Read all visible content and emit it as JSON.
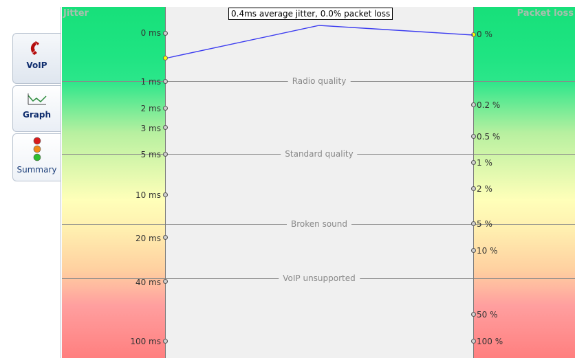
{
  "tabs": [
    {
      "label": "VoIP",
      "icon": "phone-icon",
      "active": true
    },
    {
      "label": "Graph",
      "icon": "graph-icon",
      "active": false
    },
    {
      "label": "Summary",
      "icon": "traffic-light-icon",
      "active": false
    }
  ],
  "graph": {
    "jitter_title": "Jitter",
    "loss_title": "Packet loss",
    "result_text": "0.4ms average jitter, 0.0% packet loss",
    "jitter_ticks": [
      "0 ms",
      "1 ms",
      "2 ms",
      "3 ms",
      "5 ms",
      "10 ms",
      "20 ms",
      "40 ms",
      "100 ms"
    ],
    "loss_ticks": [
      "0 %",
      "0.2 %",
      "0.5 %",
      "1 %",
      "2 %",
      "5 %",
      "10 %",
      "50 %",
      "100 %"
    ],
    "quality_lines": [
      "Radio quality",
      "Standard quality",
      "Broken sound",
      "VoIP unsupported"
    ],
    "measured": {
      "jitter_ms": 0.4,
      "packet_loss_pct": 0.0
    },
    "colors": {
      "line": "#3c3cf0",
      "marker": "#ffff00"
    }
  }
}
